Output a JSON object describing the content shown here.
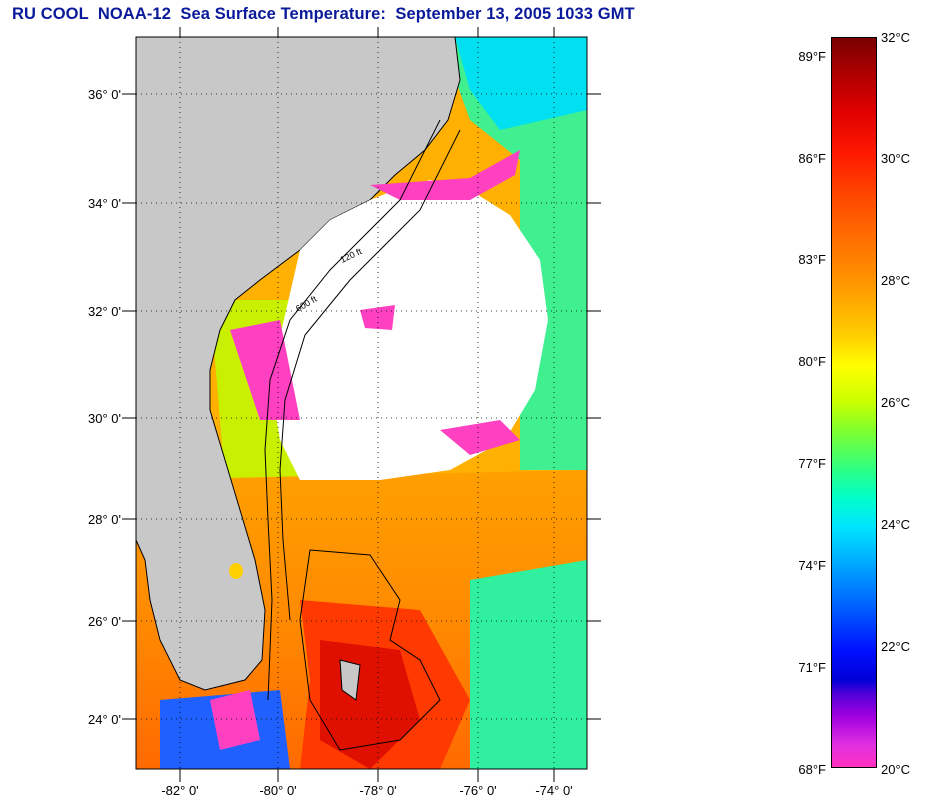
{
  "title": "RU COOL  NOAA-12  Sea Surface Temperature:  September 13, 2005 1033 GMT",
  "map": {
    "lat_labels": [
      "24° 0'",
      "26° 0'",
      "28° 0'",
      "30° 0'",
      "32° 0'",
      "34° 0'",
      "36° 0'"
    ],
    "lon_labels": [
      "-82° 0'",
      "-80° 0'",
      "-78° 0'",
      "-76° 0'",
      "-74° 0'"
    ],
    "contour_labels": [
      "120 ft",
      "600 ft"
    ],
    "colors": {
      "land": "#c8c8c8",
      "cloud": "#ffffff",
      "coastline": "#000000",
      "grid": "#000000"
    }
  },
  "colorbar": {
    "fahrenheit": [
      {
        "label": "89°F",
        "value": 89
      },
      {
        "label": "86°F",
        "value": 86
      },
      {
        "label": "83°F",
        "value": 83
      },
      {
        "label": "80°F",
        "value": 80
      },
      {
        "label": "77°F",
        "value": 77
      },
      {
        "label": "74°F",
        "value": 74
      },
      {
        "label": "71°F",
        "value": 71
      },
      {
        "label": "68°F",
        "value": 68
      }
    ],
    "celsius": [
      {
        "label": "32°C",
        "value": 32
      },
      {
        "label": "30°C",
        "value": 30
      },
      {
        "label": "28°C",
        "value": 28
      },
      {
        "label": "26°C",
        "value": 26
      },
      {
        "label": "24°C",
        "value": 24
      },
      {
        "label": "22°C",
        "value": 22
      },
      {
        "label": "20°C",
        "value": 20
      }
    ]
  }
}
